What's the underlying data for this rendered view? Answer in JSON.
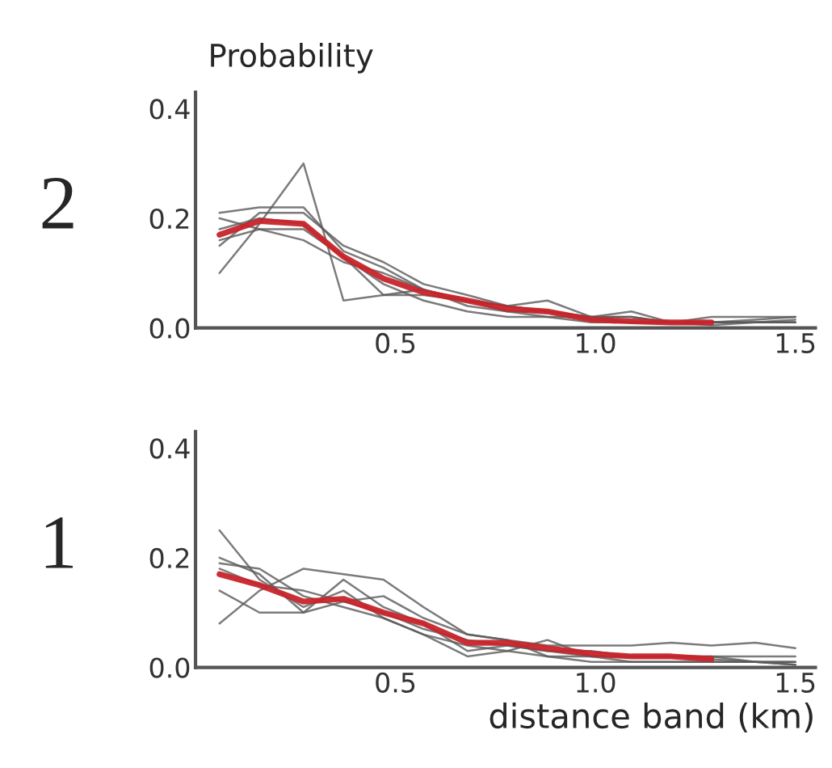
{
  "chart_data": [
    {
      "type": "line",
      "ylabel": "Probability",
      "annotations": [
        "2"
      ],
      "x": [
        0.06,
        0.16,
        0.27,
        0.37,
        0.47,
        0.57,
        0.68,
        0.78,
        0.88,
        0.99,
        1.09,
        1.19,
        1.29,
        1.4,
        1.5
      ],
      "xlim": [
        0,
        1.55
      ],
      "ylim": [
        0,
        0.43
      ],
      "xticks": [
        {
          "value": 0.5,
          "label": "0.5"
        },
        {
          "value": 1,
          "label": "1.0"
        },
        {
          "value": 1.5,
          "label": "1.5"
        }
      ],
      "yticks": [
        {
          "value": 0,
          "label": "0.0"
        },
        {
          "value": 0.2,
          "label": "0.2"
        },
        {
          "value": 0.4,
          "label": "0.4"
        }
      ],
      "grid": false,
      "legend": false,
      "marker": "none",
      "line_style": "solid",
      "series": [
        {
          "color": "#5a5a5a",
          "values": [
            0.1,
            0.19,
            0.3,
            0.05,
            0.06,
            0.07,
            0.05,
            0.04,
            0.05,
            0.02,
            0.02,
            0.01,
            0.01,
            0.015,
            0.02
          ]
        },
        {
          "color": "#5a5a5a",
          "values": [
            0.21,
            0.22,
            0.22,
            0.14,
            0.11,
            0.07,
            0.05,
            0.04,
            0.03,
            0.02,
            0.02,
            0.01,
            0.01,
            0.01,
            0.015
          ]
        },
        {
          "color": "#5a5a5a",
          "values": [
            0.2,
            0.18,
            0.16,
            0.12,
            0.1,
            0.07,
            0.04,
            0.03,
            0.02,
            0.02,
            0.01,
            0.01,
            0.01,
            0.01,
            0.01
          ]
        },
        {
          "color": "#5a5a5a",
          "values": [
            0.15,
            0.21,
            0.21,
            0.15,
            0.12,
            0.08,
            0.06,
            0.04,
            0.03,
            0.02,
            0.03,
            0.01,
            0.02,
            0.02,
            0.02
          ]
        },
        {
          "color": "#5a5a5a",
          "values": [
            0.16,
            0.18,
            0.18,
            0.13,
            0.08,
            0.05,
            0.03,
            0.02,
            0.02,
            0.01,
            0.01,
            0.01,
            0.01,
            0.01,
            0.01
          ]
        },
        {
          "color": "#5a5a5a",
          "values": [
            0.18,
            0.2,
            0.19,
            0.13,
            0.06,
            0.06,
            0.05,
            0.03,
            0.03,
            0.015,
            0.01,
            0.01,
            0.005,
            0.01,
            0.01
          ]
        },
        {
          "color": "#c8242b",
          "values": [
            0.17,
            0.195,
            0.19,
            0.13,
            0.09,
            0.065,
            0.05,
            0.035,
            0.03,
            0.015,
            0.012,
            0.01,
            0.01,
            null,
            null
          ]
        }
      ]
    },
    {
      "type": "line",
      "xlabel": "distance band (km)",
      "annotations": [
        "1"
      ],
      "x": [
        0.06,
        0.16,
        0.27,
        0.37,
        0.47,
        0.57,
        0.68,
        0.78,
        0.88,
        0.99,
        1.09,
        1.19,
        1.29,
        1.4,
        1.5
      ],
      "xlim": [
        0,
        1.55
      ],
      "ylim": [
        0,
        0.43
      ],
      "xticks": [
        {
          "value": 0.5,
          "label": "0.5"
        },
        {
          "value": 1,
          "label": "1.0"
        },
        {
          "value": 1.5,
          "label": "1.5"
        }
      ],
      "yticks": [
        {
          "value": 0,
          "label": "0.0"
        },
        {
          "value": 0.2,
          "label": "0.2"
        },
        {
          "value": 0.4,
          "label": "0.4"
        }
      ],
      "grid": false,
      "legend": false,
      "marker": "none",
      "line_style": "solid",
      "series": [
        {
          "color": "#5a5a5a",
          "values": [
            0.25,
            0.16,
            0.11,
            0.14,
            0.09,
            0.06,
            0.02,
            0.03,
            0.05,
            0.02,
            0.02,
            0.02,
            0.02,
            0.01,
            0.01
          ]
        },
        {
          "color": "#5a5a5a",
          "values": [
            0.08,
            0.14,
            0.18,
            0.17,
            0.16,
            0.11,
            0.06,
            0.05,
            0.04,
            0.04,
            0.04,
            0.045,
            0.04,
            0.045,
            0.035
          ]
        },
        {
          "color": "#5a5a5a",
          "values": [
            0.14,
            0.1,
            0.1,
            0.16,
            0.11,
            0.08,
            0.03,
            0.04,
            0.03,
            0.02,
            0.01,
            0.01,
            0.01,
            0.01,
            0.01
          ]
        },
        {
          "color": "#5a5a5a",
          "values": [
            0.2,
            0.17,
            0.1,
            0.12,
            0.13,
            0.09,
            0.06,
            0.05,
            0.02,
            0.02,
            0.02,
            0.02,
            0.02,
            0.02,
            0.02
          ]
        },
        {
          "color": "#5a5a5a",
          "values": [
            0.19,
            0.18,
            0.13,
            0.11,
            0.09,
            0.06,
            0.04,
            0.03,
            0.02,
            0.01,
            0.01,
            0.01,
            0.01,
            0.01,
            0.005
          ]
        },
        {
          "color": "#5a5a5a",
          "values": [
            0.18,
            0.15,
            0.14,
            0.12,
            0.1,
            0.07,
            0.05,
            0.04,
            0.03,
            0.03,
            0.02,
            0.02,
            0.015,
            0.01,
            0.005
          ]
        },
        {
          "color": "#c8242b",
          "values": [
            0.17,
            0.15,
            0.12,
            0.125,
            0.1,
            0.08,
            0.045,
            0.045,
            0.035,
            0.025,
            0.02,
            0.02,
            0.015,
            null,
            null
          ]
        }
      ]
    }
  ]
}
